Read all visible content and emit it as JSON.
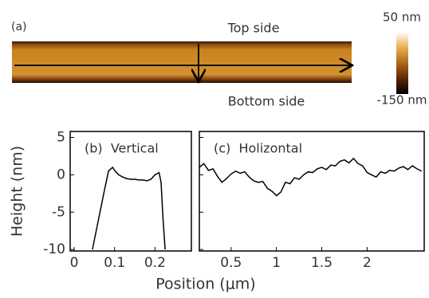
{
  "image_panel": {
    "label": "(a)",
    "top_label": "Top side",
    "bottom_label": "Bottom side",
    "colorbar": {
      "lim": [
        -150,
        50
      ],
      "ticks": [
        {
          "value": 50,
          "label": "50 nm"
        },
        {
          "value": -150,
          "label": "-150 nm"
        }
      ]
    }
  },
  "x_label": "Position (μm)",
  "y_label": "Height (nm)",
  "chart_data": [
    {
      "type": "line",
      "title": "(b)  Vertical",
      "color": "#000000",
      "x": [
        0.045,
        0.06,
        0.075,
        0.085,
        0.095,
        0.1,
        0.11,
        0.12,
        0.13,
        0.14,
        0.15,
        0.16,
        0.17,
        0.18,
        0.19,
        0.2,
        0.21,
        0.215,
        0.22,
        0.225
      ],
      "values": [
        -10,
        -6,
        -2,
        0.5,
        1,
        0.6,
        0,
        -0.3,
        -0.5,
        -0.6,
        -0.6,
        -0.7,
        -0.7,
        -0.8,
        -0.6,
        0,
        0.3,
        -1,
        -6,
        -10
      ],
      "xlim": [
        -0.01,
        0.29
      ],
      "ylim": [
        -10.2,
        5.8
      ],
      "xticks": [
        0,
        0.1,
        0.2
      ],
      "yticks": [
        -10,
        -5,
        0,
        5
      ]
    },
    {
      "type": "line",
      "title": "(c)  Holizontal",
      "color": "#000000",
      "x": [
        0.15,
        0.2,
        0.25,
        0.3,
        0.35,
        0.4,
        0.45,
        0.5,
        0.55,
        0.6,
        0.65,
        0.7,
        0.75,
        0.8,
        0.85,
        0.9,
        0.95,
        1.0,
        1.05,
        1.1,
        1.15,
        1.2,
        1.25,
        1.3,
        1.35,
        1.4,
        1.45,
        1.5,
        1.55,
        1.6,
        1.65,
        1.7,
        1.75,
        1.8,
        1.85,
        1.9,
        1.95,
        2.0,
        2.05,
        2.1,
        2.15,
        2.2,
        2.25,
        2.3,
        2.35,
        2.4,
        2.45,
        2.5,
        2.55,
        2.6
      ],
      "values": [
        1,
        1.5,
        0.6,
        0.8,
        -0.2,
        -1,
        -0.5,
        0.1,
        0.5,
        0.2,
        0.4,
        -0.3,
        -0.8,
        -1,
        -0.9,
        -1.8,
        -2.2,
        -2.8,
        -2.3,
        -1,
        -1.2,
        -0.4,
        -0.6,
        0,
        0.4,
        0.3,
        0.8,
        1,
        0.7,
        1.3,
        1.2,
        1.8,
        2,
        1.6,
        2.2,
        1.5,
        1.2,
        0.3,
        0,
        -0.3,
        0.4,
        0.2,
        0.6,
        0.5,
        0.9,
        1.1,
        0.7,
        1.2,
        0.8,
        0.5
      ],
      "xlim": [
        0.15,
        2.63
      ],
      "ylim": [
        -10.2,
        5.8
      ],
      "xticks": [
        0.5,
        1,
        1.5,
        2
      ],
      "yticks": [
        -10,
        -5,
        0,
        5
      ]
    }
  ]
}
